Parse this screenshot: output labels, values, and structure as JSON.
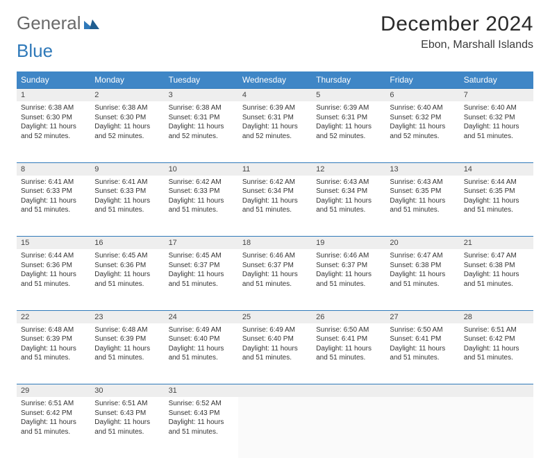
{
  "brand": {
    "name_gray": "General",
    "name_blue": "Blue"
  },
  "header": {
    "title": "December 2024",
    "location": "Ebon, Marshall Islands"
  },
  "colors": {
    "header_bg": "#3f86c6",
    "header_text": "#ffffff",
    "daynum_bg": "#eeeeee",
    "rule": "#2f79b9",
    "text": "#333333",
    "logo_gray": "#6a6a6a",
    "logo_blue": "#2f79b9",
    "page_bg": "#ffffff"
  },
  "calendar": {
    "day_names": [
      "Sunday",
      "Monday",
      "Tuesday",
      "Wednesday",
      "Thursday",
      "Friday",
      "Saturday"
    ],
    "cell_fontsize": 10,
    "header_fontsize": 12,
    "title_fontsize": 30,
    "location_fontsize": 16,
    "first_weekday_index": 0,
    "days_in_month": 31,
    "days": [
      {
        "n": 1,
        "sunrise": "6:38 AM",
        "sunset": "6:30 PM",
        "daylight": "11 hours and 52 minutes."
      },
      {
        "n": 2,
        "sunrise": "6:38 AM",
        "sunset": "6:30 PM",
        "daylight": "11 hours and 52 minutes."
      },
      {
        "n": 3,
        "sunrise": "6:38 AM",
        "sunset": "6:31 PM",
        "daylight": "11 hours and 52 minutes."
      },
      {
        "n": 4,
        "sunrise": "6:39 AM",
        "sunset": "6:31 PM",
        "daylight": "11 hours and 52 minutes."
      },
      {
        "n": 5,
        "sunrise": "6:39 AM",
        "sunset": "6:31 PM",
        "daylight": "11 hours and 52 minutes."
      },
      {
        "n": 6,
        "sunrise": "6:40 AM",
        "sunset": "6:32 PM",
        "daylight": "11 hours and 52 minutes."
      },
      {
        "n": 7,
        "sunrise": "6:40 AM",
        "sunset": "6:32 PM",
        "daylight": "11 hours and 51 minutes."
      },
      {
        "n": 8,
        "sunrise": "6:41 AM",
        "sunset": "6:33 PM",
        "daylight": "11 hours and 51 minutes."
      },
      {
        "n": 9,
        "sunrise": "6:41 AM",
        "sunset": "6:33 PM",
        "daylight": "11 hours and 51 minutes."
      },
      {
        "n": 10,
        "sunrise": "6:42 AM",
        "sunset": "6:33 PM",
        "daylight": "11 hours and 51 minutes."
      },
      {
        "n": 11,
        "sunrise": "6:42 AM",
        "sunset": "6:34 PM",
        "daylight": "11 hours and 51 minutes."
      },
      {
        "n": 12,
        "sunrise": "6:43 AM",
        "sunset": "6:34 PM",
        "daylight": "11 hours and 51 minutes."
      },
      {
        "n": 13,
        "sunrise": "6:43 AM",
        "sunset": "6:35 PM",
        "daylight": "11 hours and 51 minutes."
      },
      {
        "n": 14,
        "sunrise": "6:44 AM",
        "sunset": "6:35 PM",
        "daylight": "11 hours and 51 minutes."
      },
      {
        "n": 15,
        "sunrise": "6:44 AM",
        "sunset": "6:36 PM",
        "daylight": "11 hours and 51 minutes."
      },
      {
        "n": 16,
        "sunrise": "6:45 AM",
        "sunset": "6:36 PM",
        "daylight": "11 hours and 51 minutes."
      },
      {
        "n": 17,
        "sunrise": "6:45 AM",
        "sunset": "6:37 PM",
        "daylight": "11 hours and 51 minutes."
      },
      {
        "n": 18,
        "sunrise": "6:46 AM",
        "sunset": "6:37 PM",
        "daylight": "11 hours and 51 minutes."
      },
      {
        "n": 19,
        "sunrise": "6:46 AM",
        "sunset": "6:37 PM",
        "daylight": "11 hours and 51 minutes."
      },
      {
        "n": 20,
        "sunrise": "6:47 AM",
        "sunset": "6:38 PM",
        "daylight": "11 hours and 51 minutes."
      },
      {
        "n": 21,
        "sunrise": "6:47 AM",
        "sunset": "6:38 PM",
        "daylight": "11 hours and 51 minutes."
      },
      {
        "n": 22,
        "sunrise": "6:48 AM",
        "sunset": "6:39 PM",
        "daylight": "11 hours and 51 minutes."
      },
      {
        "n": 23,
        "sunrise": "6:48 AM",
        "sunset": "6:39 PM",
        "daylight": "11 hours and 51 minutes."
      },
      {
        "n": 24,
        "sunrise": "6:49 AM",
        "sunset": "6:40 PM",
        "daylight": "11 hours and 51 minutes."
      },
      {
        "n": 25,
        "sunrise": "6:49 AM",
        "sunset": "6:40 PM",
        "daylight": "11 hours and 51 minutes."
      },
      {
        "n": 26,
        "sunrise": "6:50 AM",
        "sunset": "6:41 PM",
        "daylight": "11 hours and 51 minutes."
      },
      {
        "n": 27,
        "sunrise": "6:50 AM",
        "sunset": "6:41 PM",
        "daylight": "11 hours and 51 minutes."
      },
      {
        "n": 28,
        "sunrise": "6:51 AM",
        "sunset": "6:42 PM",
        "daylight": "11 hours and 51 minutes."
      },
      {
        "n": 29,
        "sunrise": "6:51 AM",
        "sunset": "6:42 PM",
        "daylight": "11 hours and 51 minutes."
      },
      {
        "n": 30,
        "sunrise": "6:51 AM",
        "sunset": "6:43 PM",
        "daylight": "11 hours and 51 minutes."
      },
      {
        "n": 31,
        "sunrise": "6:52 AM",
        "sunset": "6:43 PM",
        "daylight": "11 hours and 51 minutes."
      }
    ],
    "labels": {
      "sunrise": "Sunrise:",
      "sunset": "Sunset:",
      "daylight": "Daylight:"
    }
  }
}
